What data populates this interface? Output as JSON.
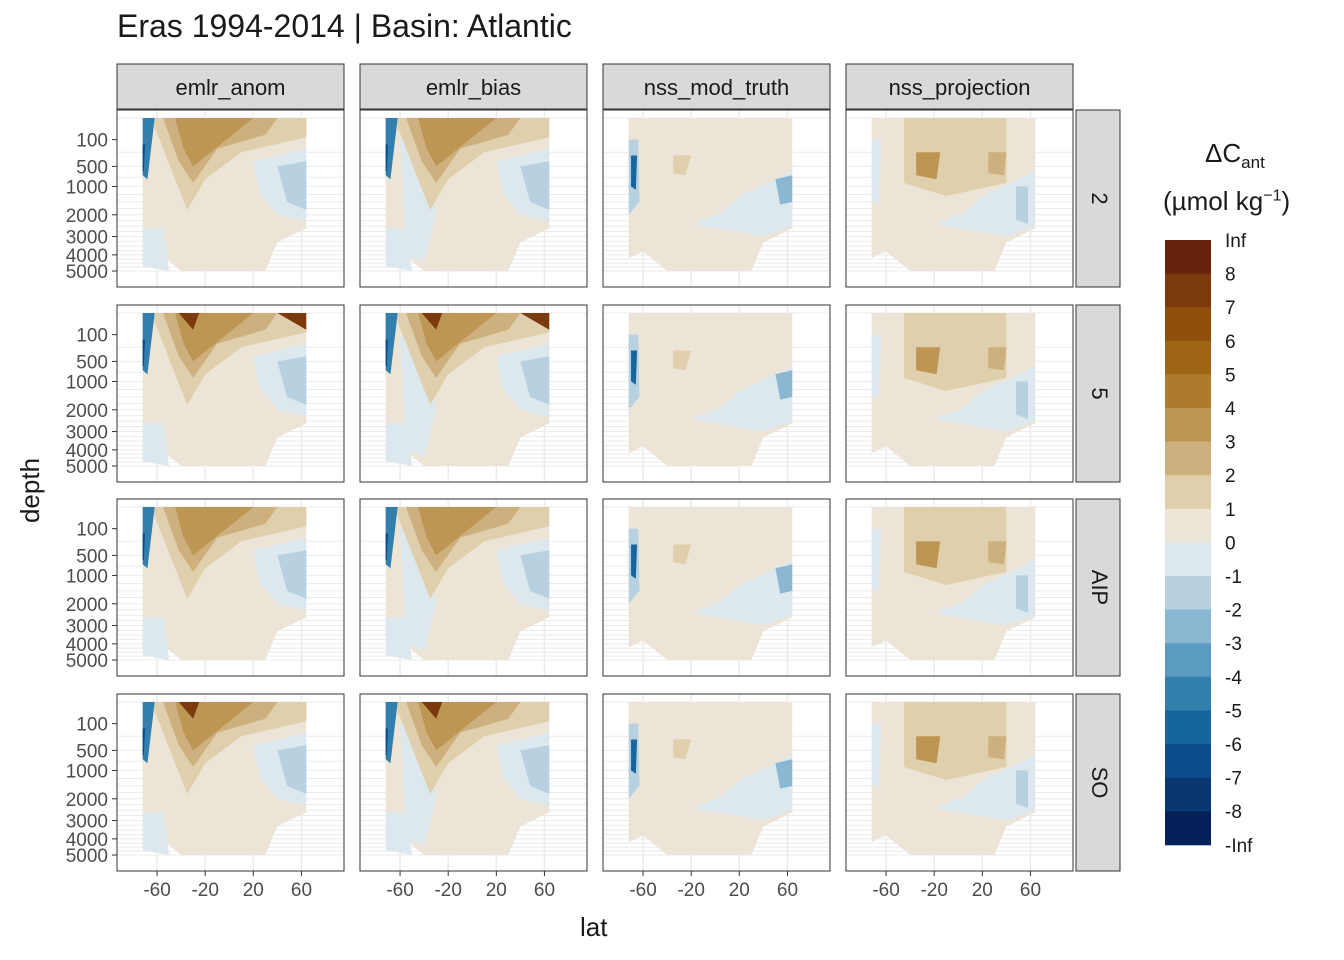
{
  "chart_data": {
    "type": "heatmap",
    "title": "Eras 1994-2014 | Basin: Atlantic",
    "xlabel": "lat",
    "ylabel": "depth",
    "legend": {
      "title_main": "ΔC",
      "title_sub": "ant",
      "unit_pre": "(µmol kg",
      "unit_sup": "−1",
      "unit_post": ")",
      "placement": "right",
      "breaks": [
        "Inf",
        "8",
        "7",
        "6",
        "5",
        "4",
        "3",
        "2",
        "1",
        "0",
        "-1",
        "-2",
        "-3",
        "-4",
        "-5",
        "-6",
        "-7",
        "-8",
        "-Inf"
      ],
      "colors": [
        "#67200c",
        "#7c3a0c",
        "#8f4f0a",
        "#9e6416",
        "#ad7b2e",
        "#bd9654",
        "#cdb07e",
        "#dfcfac",
        "#ece4d6",
        "#dde8ee",
        "#b7d1e1",
        "#8bb7d2",
        "#5b9bc1",
        "#327fae",
        "#17659d",
        "#0b4d8a",
        "#083772",
        "#05215a"
      ]
    },
    "col_facets": [
      "emlr_anom",
      "emlr_bias",
      "nss_mod_truth",
      "nss_projection"
    ],
    "row_facets": [
      "2",
      "5",
      "AIP",
      "SO"
    ],
    "x_axis": {
      "ticks": [
        -60,
        -20,
        20,
        60
      ],
      "tick_labels": [
        "-60",
        "-20",
        "20",
        "60"
      ],
      "range": [
        -80,
        80
      ]
    },
    "y_axis": {
      "ticks": [
        100,
        500,
        1000,
        2000,
        3000,
        4000,
        5000
      ],
      "tick_labels": [
        "100",
        "500",
        "1000",
        "2000",
        "3000",
        "4000",
        "5000"
      ],
      "reversed": true,
      "scale": "sqrt"
    }
  }
}
